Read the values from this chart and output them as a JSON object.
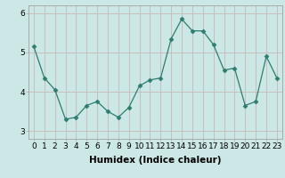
{
  "x": [
    0,
    1,
    2,
    3,
    4,
    5,
    6,
    7,
    8,
    9,
    10,
    11,
    12,
    13,
    14,
    15,
    16,
    17,
    18,
    19,
    20,
    21,
    22,
    23
  ],
  "y": [
    5.15,
    4.35,
    4.05,
    3.3,
    3.35,
    3.65,
    3.75,
    3.5,
    3.35,
    3.6,
    4.15,
    4.3,
    4.35,
    5.35,
    5.85,
    5.55,
    5.55,
    5.2,
    4.55,
    4.6,
    3.65,
    3.75,
    4.9,
    4.35
  ],
  "xlabel": "Humidex (Indice chaleur)",
  "ylim": [
    2.8,
    6.2
  ],
  "yticks": [
    3,
    4,
    5,
    6
  ],
  "xticks": [
    0,
    1,
    2,
    3,
    4,
    5,
    6,
    7,
    8,
    9,
    10,
    11,
    12,
    13,
    14,
    15,
    16,
    17,
    18,
    19,
    20,
    21,
    22,
    23
  ],
  "line_color": "#2e7d6e",
  "marker": "D",
  "marker_size": 2.5,
  "bg_color": "#cce8e6",
  "grid_color": "#c8bebe",
  "spine_color": "#aaaaaa",
  "tick_label_fontsize": 6.5,
  "xlabel_fontsize": 7.5
}
